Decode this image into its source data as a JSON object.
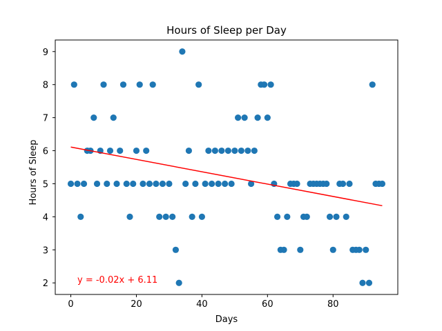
{
  "chart_data": {
    "type": "scatter",
    "title": "Hours of Sleep per Day",
    "xlabel": "Days",
    "ylabel": "Hours of Sleep",
    "xlim": [
      -4.75,
      99.75
    ],
    "ylim": [
      1.65,
      9.35
    ],
    "xticks": [
      0,
      20,
      40,
      60,
      80
    ],
    "yticks": [
      2,
      3,
      4,
      5,
      6,
      7,
      8,
      9
    ],
    "grid": false,
    "point_color": "#1f77b4",
    "x": [
      0,
      1,
      2,
      3,
      4,
      5,
      6,
      7,
      8,
      9,
      10,
      11,
      12,
      13,
      14,
      15,
      16,
      17,
      18,
      19,
      20,
      21,
      22,
      23,
      24,
      25,
      26,
      27,
      28,
      29,
      30,
      31,
      32,
      33,
      34,
      35,
      36,
      37,
      38,
      39,
      40,
      41,
      42,
      43,
      44,
      45,
      46,
      47,
      48,
      49,
      50,
      51,
      52,
      53,
      54,
      55,
      56,
      57,
      58,
      59,
      60,
      61,
      62,
      63,
      64,
      65,
      66,
      67,
      68,
      69,
      70,
      71,
      72,
      73,
      74,
      75,
      76,
      77,
      78,
      79,
      80,
      81,
      82,
      83,
      84,
      85,
      86,
      87,
      88,
      89,
      90,
      91,
      92,
      93,
      94,
      95
    ],
    "y": [
      5,
      8,
      5,
      4,
      5,
      6,
      6,
      7,
      5,
      6,
      8,
      5,
      6,
      7,
      5,
      6,
      8,
      5,
      4,
      5,
      6,
      8,
      5,
      6,
      5,
      8,
      5,
      4,
      5,
      4,
      5,
      4,
      3,
      2,
      9,
      5,
      6,
      4,
      5,
      8,
      4,
      5,
      6,
      5,
      6,
      5,
      6,
      5,
      6,
      5,
      6,
      7,
      6,
      7,
      6,
      5,
      6,
      7,
      8,
      8,
      7,
      8,
      5,
      4,
      3,
      3,
      4,
      5,
      5,
      5,
      3,
      4,
      4,
      5,
      5,
      5,
      5,
      5,
      5,
      4,
      3,
      4,
      5,
      5,
      4,
      5,
      3,
      3,
      3,
      2,
      3,
      2,
      8,
      5,
      5,
      5
    ],
    "trendline": {
      "color": "#ff0000",
      "slope": -0.01868,
      "intercept": 6.11,
      "x_range": [
        0,
        95
      ],
      "label": "y = -0.02x + 6.11"
    }
  }
}
